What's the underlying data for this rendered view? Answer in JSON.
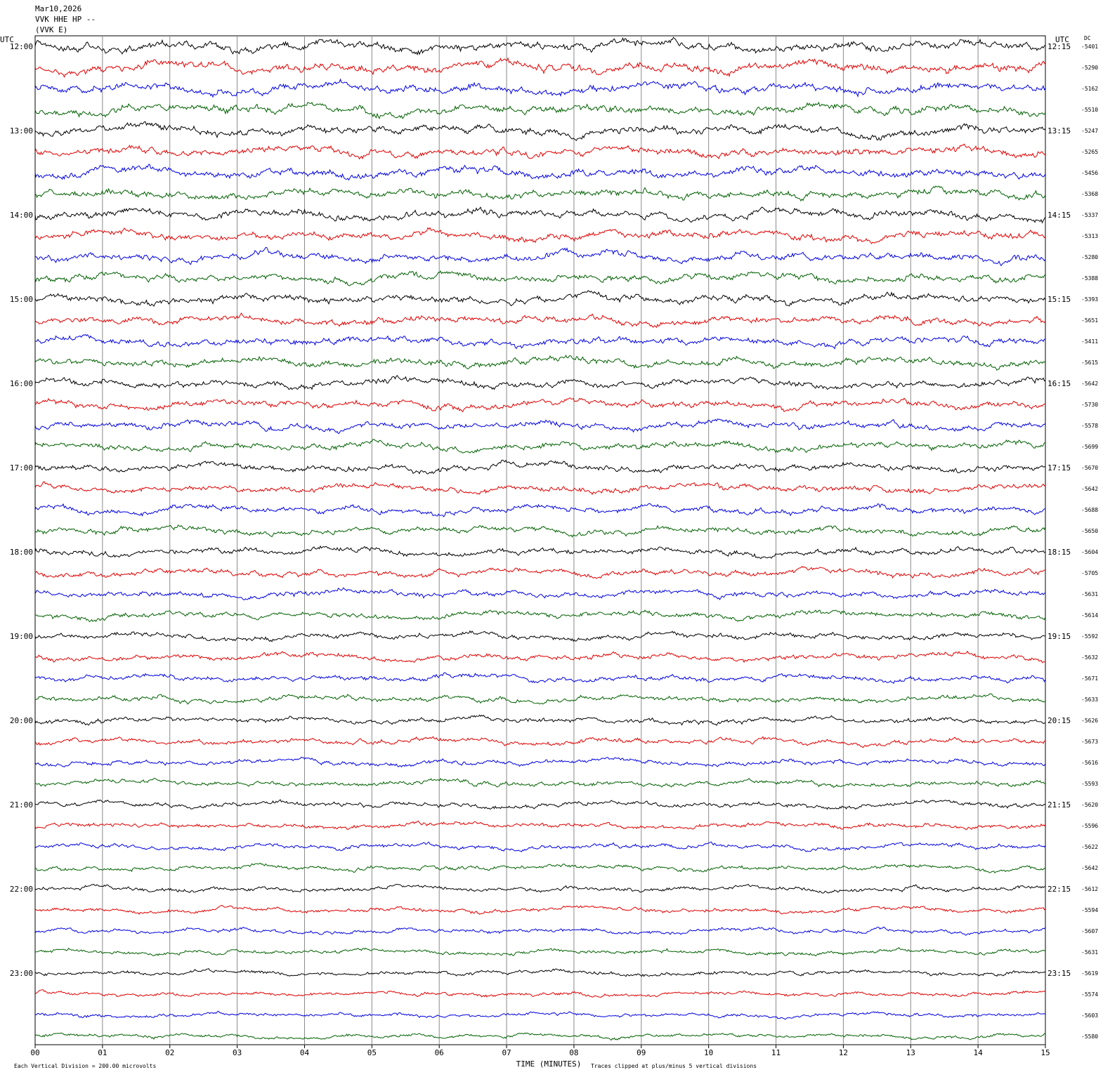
{
  "header": {
    "lines": [
      "Mar10,2026",
      "VVK HHE HP --",
      "(VVK E)"
    ]
  },
  "chart_data": {
    "type": "line",
    "title": "VVK HHE HP --",
    "station": "(VVK E)",
    "date": "Mar10,2026",
    "left_axis_title": "UTC",
    "right_axis_title": "UTC",
    "dc_column_title": "DC",
    "xlabel": "TIME (MINUTES)",
    "xlim": [
      0,
      15
    ],
    "x_tick_labels": [
      "00",
      "01",
      "02",
      "03",
      "04",
      "05",
      "06",
      "07",
      "08",
      "09",
      "10",
      "11",
      "12",
      "13",
      "14",
      "15"
    ],
    "trace_colors": [
      "#000000",
      "#e00000",
      "#0000e0",
      "#006000"
    ],
    "left_hour_labels": [
      "12:00",
      "13:00",
      "14:00",
      "15:00",
      "16:00",
      "17:00",
      "18:00",
      "19:00",
      "20:00",
      "21:00",
      "22:00",
      "23:00"
    ],
    "right_hour_labels": [
      "12:15",
      "13:15",
      "14:15",
      "15:15",
      "16:15",
      "17:15",
      "18:15",
      "19:15",
      "20:15",
      "21:15",
      "22:15",
      "23:15"
    ],
    "dc_offsets": [
      "-5401",
      "-5290",
      "-5162",
      "-5510",
      "-5247",
      "-5265",
      "-5456",
      "-5368",
      "-5337",
      "-5313",
      "-5280",
      "-5388",
      "-5393",
      "-5651",
      "-5411",
      "-5615",
      "-5642",
      "-5730",
      "-5578",
      "-5699",
      "-5670",
      "-5642",
      "-5688",
      "-5650",
      "-5604",
      "-5705",
      "-5631",
      "-5614",
      "-5592",
      "-5632",
      "-5671",
      "-5633",
      "-5626",
      "-5673",
      "-5616",
      "-5593",
      "-5620",
      "-5596",
      "-5622",
      "-5642",
      "-5612",
      "-5594",
      "-5607",
      "-5631",
      "-5619",
      "-5574",
      "-5603",
      "-5580"
    ],
    "grid": true,
    "vertical_division_note": "Each Vertical Division =  200.00 microvolts",
    "clip_note": "Traces clipped at plus/minus 5 vertical divisions"
  }
}
